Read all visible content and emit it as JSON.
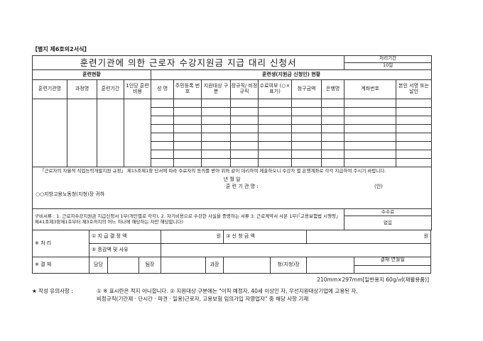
{
  "form_label": "【별지 제6호의2서식】",
  "title": "훈련기관에 의한 근로자 수강지원금 지급 대리 신청서",
  "processing": {
    "label": "처리기간",
    "value": "10일"
  },
  "sections": {
    "training": "훈련현황",
    "trainee": "훈련생(지원금 신청인) 현황"
  },
  "headers": [
    "훈련기관명",
    "과정명",
    "훈련기간",
    "1인당 훈련비용",
    "성 명",
    "주민등록 번 호",
    "지원대상 구분",
    "정규직/ 비정규직",
    "수료여부 (○×표기)",
    "청구금액",
    "은행명",
    "계좌번호",
    "본인 서명 또는 날인"
  ],
  "statement": "「근로자의 자율적 직업능력개발지원 규정」 제15조제1항 단서에 따라 수료자의 동의를 받아 위와 같이 대리하여 제출하오니 수강자 별 은행계좌로 각각 지급하여 주시기 바랍니다.",
  "date_line": "년     월     일",
  "institution_label": "훈 련 기 관 명 :",
  "seal": "(인)",
  "addressee": "○○지방고용노동청(지청)장 귀하",
  "documents": "구비서류 : 1. 근로자수강지원금 지급신청서 1부(개인별로 각각), 2. 자기비용으로 수강한 사실을 증명하는 서류 3. 근로계약서 사본 1부(「고용보험법 시행령」 제41조제3항제1호부터 제3호까지의 어느 하나에 해당하는 자만 해당합니다)",
  "fee": {
    "label": "수수료",
    "value": "없음"
  },
  "processing_section": {
    "label": "※ 처 리",
    "decided": "① 지 급 결 정 액",
    "won1": "원",
    "requested": "③ 신 청 금 액",
    "won2": "원",
    "reason": "⑤ 증감액 및 사유"
  },
  "approval": {
    "label": "※ 결 재",
    "staff": "담당",
    "team": "팀장",
    "section": "과장",
    "chief": "청(지청)장",
    "date": "결재 연월일"
  },
  "paper": "210mm×297mm[일반용지 60g/㎡(재활용품)]",
  "notes": {
    "prefix": "★ 작성 유의사항 :",
    "line1": "① ※ 표시란은 적지 아니합니다. ② 지원대상 구분에는 \"이직 예정자, 40세 이상인 자, 우선지원대상기업에 고용된 자,",
    "line2": "비정규직(기간제 · 단시간 · 파견 · 일용)근로자, 고용보험 임의가입 자영업자\" 중 해당 사항 기재"
  }
}
